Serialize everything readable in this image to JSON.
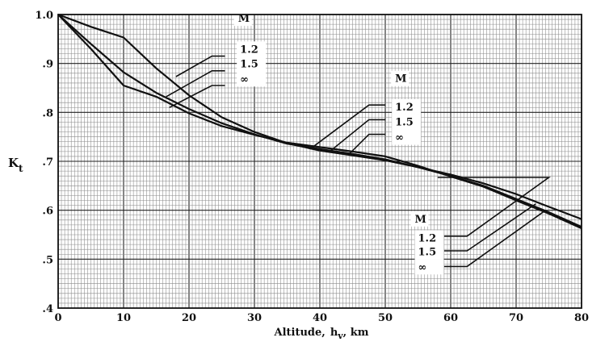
{
  "chart_data": {
    "type": "line",
    "title": "",
    "xlabel": "Altitude,",
    "xlabel_symbol": "h",
    "xlabel_sub": "v",
    "xlabel_unit": ", km",
    "ylabel": "K",
    "ylabel_sub": "t",
    "xlim": [
      0,
      80
    ],
    "ylim": [
      0.4,
      1.0
    ],
    "grid": true,
    "x_ticks": [
      0,
      10,
      20,
      30,
      40,
      50,
      60,
      70,
      80
    ],
    "x_tick_labels": [
      "0",
      "10",
      "20",
      "30",
      "40",
      "50",
      "60",
      "70",
      "80"
    ],
    "y_ticks": [
      0.4,
      0.5,
      0.6,
      0.7,
      0.8,
      0.9,
      1.0
    ],
    "y_tick_labels": [
      ".4",
      ".5",
      ".6",
      ".7",
      ".8",
      ".9",
      "1.0"
    ],
    "series": [
      {
        "name": "1.2",
        "x": [
          0,
          5,
          10,
          15,
          20,
          25,
          30,
          35,
          40,
          45,
          50,
          55,
          60,
          65,
          70,
          75,
          80
        ],
        "y": [
          1.0,
          0.975,
          0.953,
          0.89,
          0.835,
          0.79,
          0.76,
          0.737,
          0.722,
          0.712,
          0.702,
          0.688,
          0.673,
          0.655,
          0.633,
          0.607,
          0.582
        ]
      },
      {
        "name": "1.5",
        "x": [
          0,
          5,
          10,
          15,
          20,
          25,
          30,
          35,
          40,
          45,
          50,
          55,
          60,
          65,
          70,
          75,
          80
        ],
        "y": [
          1.0,
          0.94,
          0.882,
          0.84,
          0.807,
          0.778,
          0.755,
          0.736,
          0.725,
          0.715,
          0.704,
          0.688,
          0.67,
          0.65,
          0.623,
          0.596,
          0.566
        ]
      },
      {
        "name": "∞",
        "x": [
          0,
          5,
          10,
          15,
          20,
          25,
          30,
          35,
          40,
          45,
          50,
          55,
          60,
          65,
          70,
          75,
          80
        ],
        "y": [
          1.0,
          0.93,
          0.855,
          0.832,
          0.798,
          0.772,
          0.754,
          0.738,
          0.729,
          0.72,
          0.71,
          0.691,
          0.669,
          0.648,
          0.62,
          0.593,
          0.563
        ]
      }
    ],
    "annotations": [
      {
        "header": "M",
        "labels": [
          "1.2",
          "1.5",
          "∞"
        ],
        "header_at": [
          27.5,
          0.985
        ],
        "label_at": [
          [
            27.8,
            0.922
          ],
          [
            27.8,
            0.892
          ],
          [
            27.8,
            0.861
          ]
        ],
        "leaders": [
          [
            [
              25.5,
              0.915
            ],
            [
              23.5,
              0.915
            ],
            [
              18,
              0.873
            ]
          ],
          [
            [
              25.5,
              0.885
            ],
            [
              23.5,
              0.885
            ],
            [
              16.5,
              0.832
            ]
          ],
          [
            [
              25.5,
              0.855
            ],
            [
              23.5,
              0.855
            ],
            [
              17,
              0.81
            ]
          ]
        ]
      },
      {
        "header": "M",
        "labels": [
          "1.2",
          "1.5",
          "∞"
        ],
        "header_at": [
          51.5,
          0.862
        ],
        "label_at": [
          [
            51.5,
            0.804
          ],
          [
            51.5,
            0.773
          ],
          [
            51.5,
            0.742
          ]
        ],
        "leaders": [
          [
            [
              50,
              0.815
            ],
            [
              47.5,
              0.815
            ],
            [
              38.5,
              0.725
            ]
          ],
          [
            [
              50,
              0.785
            ],
            [
              47.5,
              0.785
            ],
            [
              41.5,
              0.72
            ]
          ],
          [
            [
              50,
              0.755
            ],
            [
              47.5,
              0.755
            ],
            [
              44.5,
              0.715
            ]
          ]
        ]
      },
      {
        "header": "M",
        "labels": [
          "1.2",
          "1.5",
          "∞"
        ],
        "header_at": [
          54.5,
          0.575
        ],
        "label_at": [
          [
            55,
            0.536
          ],
          [
            55,
            0.508
          ],
          [
            55,
            0.477
          ]
        ],
        "leaders": [
          [
            [
              59,
              0.547
            ],
            [
              62.5,
              0.547
            ],
            [
              75,
              0.667
            ],
            [
              58,
              0.667
            ]
          ],
          [
            [
              59,
              0.517
            ],
            [
              62.5,
              0.517
            ],
            [
              73,
              0.613
            ]
          ],
          [
            [
              59,
              0.485
            ],
            [
              62.5,
              0.485
            ],
            [
              74.5,
              0.6
            ]
          ]
        ]
      }
    ]
  }
}
